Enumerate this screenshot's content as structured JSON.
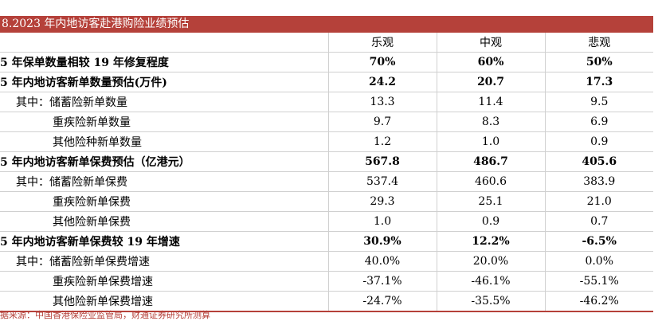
{
  "title": "8.2023 年内地访客赴港购险业绩预估",
  "headers": [
    "",
    "乐观",
    "中观",
    "悲观"
  ],
  "rows": [
    {
      "label": "5 年保单数量相较 19 年修复程度",
      "values": [
        "70%",
        "60%",
        "50%"
      ],
      "style": "bold"
    },
    {
      "label": "5 年内地访客新单数量预估(万件)",
      "values": [
        "24.2",
        "20.7",
        "17.3"
      ],
      "style": "bold"
    },
    {
      "label": "其中：储蓄险新单数量",
      "values": [
        "13.3",
        "11.4",
        "9.5"
      ],
      "style": "sub"
    },
    {
      "label": "重疾险新单数量",
      "values": [
        "9.7",
        "8.3",
        "6.9"
      ],
      "style": "sub2"
    },
    {
      "label": "其他险种新单数量",
      "values": [
        "1.2",
        "1.0",
        "0.9"
      ],
      "style": "sub2"
    },
    {
      "label": "5 年内地访客新单保费预估（亿港元）",
      "values": [
        "567.8",
        "486.7",
        "405.6"
      ],
      "style": "bold"
    },
    {
      "label": "其中：储蓄险新单保费",
      "values": [
        "537.4",
        "460.6",
        "383.9"
      ],
      "style": "sub"
    },
    {
      "label": "重疾险新单保费",
      "values": [
        "29.3",
        "25.1",
        "21.0"
      ],
      "style": "sub2"
    },
    {
      "label": "其他险新单保费",
      "values": [
        "1.0",
        "0.9",
        "0.7"
      ],
      "style": "sub2"
    },
    {
      "label": "5 年内地访客新单保费较 19 年增速",
      "values": [
        "30.9%",
        "12.2%",
        "-6.5%"
      ],
      "style": "bold"
    },
    {
      "label": "其中：储蓄险新单保费增速",
      "values": [
        "40.0%",
        "20.0%",
        "0.0%"
      ],
      "style": "sub"
    },
    {
      "label": "重疾险新单保费增速",
      "values": [
        "-37.1%",
        "-46.1%",
        "-55.1%"
      ],
      "style": "sub2"
    },
    {
      "label": "其他险新单保费增速",
      "values": [
        "-24.7%",
        "-35.5%",
        "-46.2%"
      ],
      "style": "sub2"
    }
  ],
  "source": "据来源：中国香港保险业监管局，财通证券研究所测算",
  "colors": {
    "accent": "#b5413a"
  }
}
